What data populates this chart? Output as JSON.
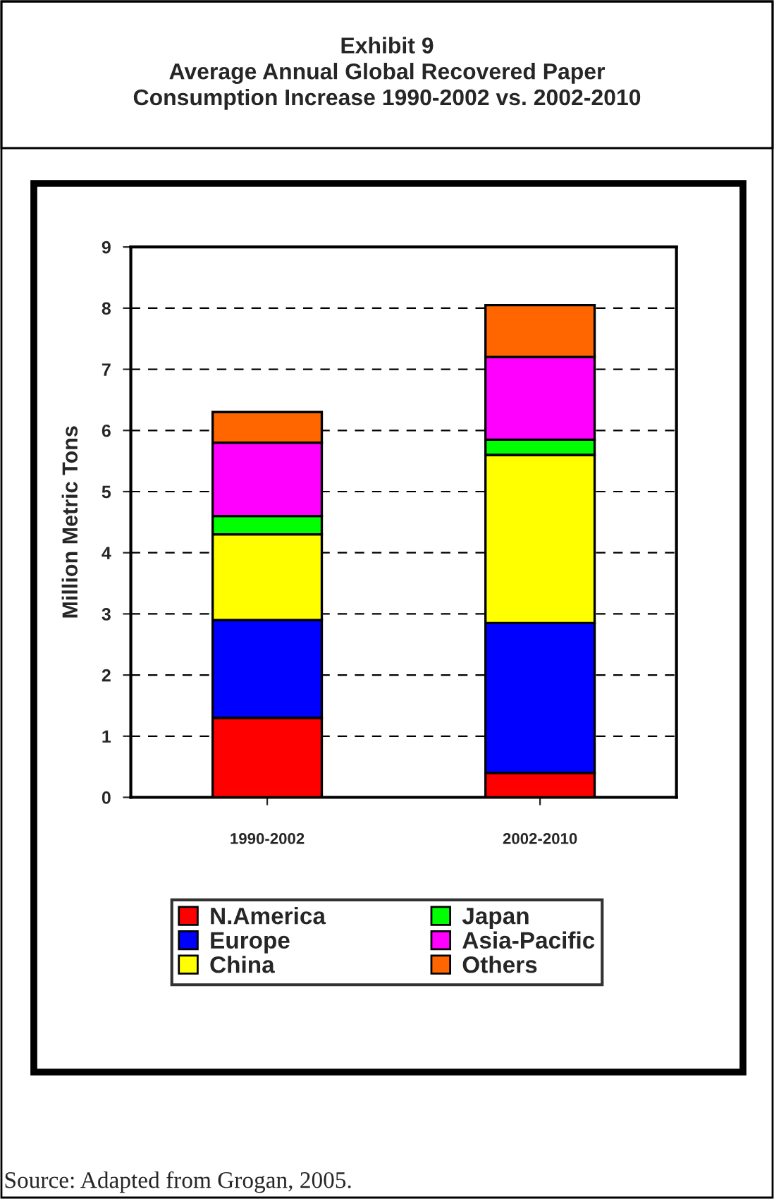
{
  "chart_data": {
    "type": "bar",
    "title": "Exhibit 9\nAverage Annual Global Recovered Paper\nConsumption Increase 1990-2002 vs. 2002-2010",
    "ylabel": "Million Metric Tons",
    "categories": [
      "1990-2002",
      "2002-2010"
    ],
    "stacked": true,
    "series": [
      {
        "name": "N.America",
        "color": "#ff0000",
        "values": [
          1.3,
          0.4
        ]
      },
      {
        "name": "Europe",
        "color": "#0000ff",
        "values": [
          1.6,
          2.45
        ]
      },
      {
        "name": "China",
        "color": "#ffff00",
        "values": [
          1.4,
          2.75
        ]
      },
      {
        "name": "Japan",
        "color": "#00ff00",
        "values": [
          0.3,
          0.25
        ]
      },
      {
        "name": "Asia-Pacific",
        "color": "#ff00ff",
        "values": [
          1.2,
          1.35
        ]
      },
      {
        "name": "Others",
        "color": "#ff6600",
        "values": [
          0.5,
          0.85
        ]
      }
    ],
    "ylim": [
      0,
      9
    ],
    "yticks": [
      0,
      1,
      2,
      3,
      4,
      5,
      6,
      7,
      8,
      9
    ],
    "grid": "y",
    "legend": "bottom",
    "annotations": [
      "Source: Adapted from Grogan, 2005."
    ]
  }
}
